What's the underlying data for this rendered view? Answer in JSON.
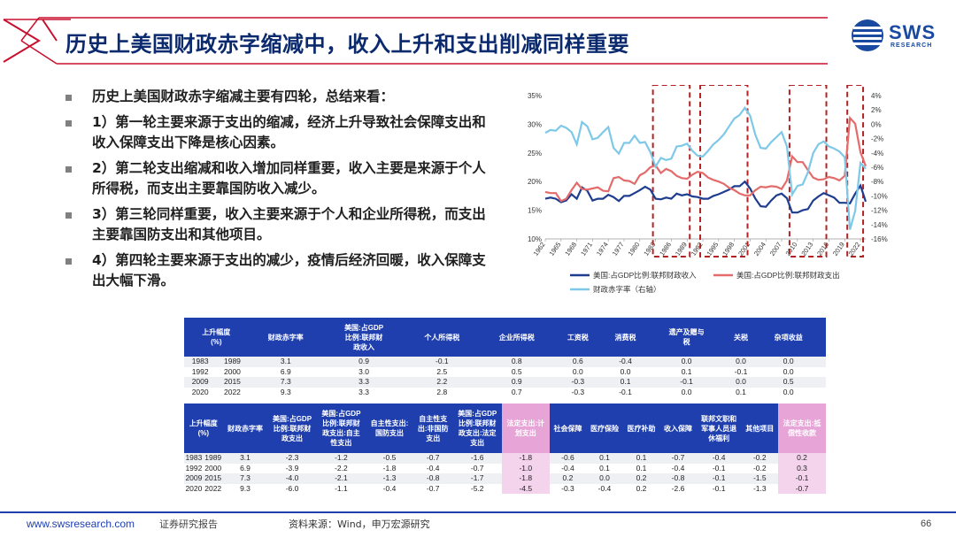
{
  "slide": {
    "title": "历史上美国财政赤字缩减中，收入上升和支出削减同样重要",
    "page_number": "66"
  },
  "logo": {
    "word": "SWS",
    "sub": "RESEARCH"
  },
  "bullets": [
    "历史上美国财政赤字缩减主要有四轮，总结来看：",
    "1）第一轮主要来源于支出的缩减，经济上升导致社会保障支出和收入保障支出下降是核心因素。",
    "2）第二轮支出缩减和收入增加同样重要，收入主要是来源于个人所得税，而支出主要靠国防收入减少。",
    "3）第三轮同样重要，收入主要来源于个人和企业所得税，而支出主要靠国防支出和其他项目。",
    "4）第四轮主要来源于支出的减少，疫情后经济回暖，收入保障支出大幅下滑。"
  ],
  "chart_data": {
    "type": "line",
    "x_ticks": [
      "1962",
      "1965",
      "1968",
      "1971",
      "1974",
      "1977",
      "1980",
      "1983",
      "1986",
      "1989",
      "1992",
      "1995",
      "1998",
      "2001",
      "2004",
      "2007",
      "2010",
      "2013",
      "2016",
      "2019",
      "2022"
    ],
    "y_left": {
      "min": 10,
      "max": 35,
      "step": 5,
      "unit": "%"
    },
    "y_right": {
      "min": -16,
      "max": 4,
      "step": 2,
      "unit": "%"
    },
    "highlight_periods": [
      [
        "1983",
        "1989"
      ],
      [
        "1992",
        "2000"
      ],
      [
        "2009",
        "2015"
      ],
      [
        "2020",
        "2022"
      ]
    ],
    "series": [
      {
        "name": "美国:占GDP比例:联邦财政收入",
        "color": "#1f3d8f",
        "axis": "left",
        "x": [
          1962,
          1963,
          1964,
          1965,
          1966,
          1967,
          1968,
          1969,
          1970,
          1971,
          1972,
          1973,
          1974,
          1975,
          1976,
          1977,
          1978,
          1979,
          1980,
          1981,
          1982,
          1983,
          1984,
          1985,
          1986,
          1987,
          1988,
          1989,
          1990,
          1991,
          1992,
          1993,
          1994,
          1995,
          1996,
          1997,
          1998,
          1999,
          2000,
          2001,
          2002,
          2003,
          2004,
          2005,
          2006,
          2007,
          2008,
          2009,
          2010,
          2011,
          2012,
          2013,
          2014,
          2015,
          2016,
          2017,
          2018,
          2019,
          2020,
          2021,
          2022,
          2023
        ],
        "values": [
          17.0,
          17.2,
          17.0,
          16.4,
          16.7,
          17.8,
          17.0,
          19.0,
          18.4,
          16.7,
          17.0,
          17.0,
          17.7,
          17.3,
          16.6,
          17.5,
          17.5,
          18.0,
          18.5,
          19.1,
          18.6,
          17.0,
          16.9,
          17.2,
          17.0,
          17.9,
          17.6,
          17.8,
          17.4,
          17.3,
          17.0,
          17.0,
          17.5,
          17.8,
          18.2,
          18.6,
          19.2,
          19.2,
          20.0,
          18.8,
          17.0,
          15.7,
          15.6,
          16.7,
          17.6,
          17.9,
          17.1,
          14.6,
          14.6,
          15.0,
          15.2,
          16.7,
          17.4,
          18.0,
          17.6,
          17.2,
          16.3,
          16.3,
          16.2,
          17.9,
          19.3,
          16.5
        ]
      },
      {
        "name": "美国:占GDP比例:联邦财政支出",
        "color": "#e46b6b",
        "axis": "left",
        "x": [
          1962,
          1963,
          1964,
          1965,
          1966,
          1967,
          1968,
          1969,
          1970,
          1971,
          1972,
          1973,
          1974,
          1975,
          1976,
          1977,
          1978,
          1979,
          1980,
          1981,
          1982,
          1983,
          1984,
          1985,
          1986,
          1987,
          1988,
          1989,
          1990,
          1991,
          1992,
          1993,
          1994,
          1995,
          1996,
          1997,
          1998,
          1999,
          2000,
          2001,
          2002,
          2003,
          2004,
          2005,
          2006,
          2007,
          2008,
          2009,
          2010,
          2011,
          2012,
          2013,
          2014,
          2015,
          2016,
          2017,
          2018,
          2019,
          2020,
          2021,
          2022,
          2023
        ],
        "values": [
          18.2,
          18.0,
          18.0,
          16.6,
          17.0,
          18.5,
          19.8,
          18.7,
          18.6,
          18.8,
          19.0,
          18.4,
          18.3,
          20.6,
          20.8,
          20.2,
          20.1,
          19.6,
          21.1,
          21.6,
          22.5,
          22.8,
          21.5,
          22.2,
          21.8,
          21.0,
          20.6,
          20.5,
          21.2,
          21.7,
          21.5,
          20.7,
          20.3,
          20.0,
          19.6,
          18.9,
          18.5,
          17.9,
          17.6,
          17.6,
          18.5,
          19.1,
          19.0,
          19.2,
          19.1,
          18.7,
          20.2,
          24.4,
          23.4,
          23.4,
          22.0,
          20.7,
          20.3,
          20.4,
          20.8,
          20.6,
          20.2,
          21.0,
          31.1,
          30.1,
          25.1,
          22.7
        ]
      },
      {
        "name": "财政赤字率（右轴）",
        "color": "#7ec8e8",
        "axis": "right",
        "x": [
          1962,
          1963,
          1964,
          1965,
          1966,
          1967,
          1968,
          1969,
          1970,
          1971,
          1972,
          1973,
          1974,
          1975,
          1976,
          1977,
          1978,
          1979,
          1980,
          1981,
          1982,
          1983,
          1984,
          1985,
          1986,
          1987,
          1988,
          1989,
          1990,
          1991,
          1992,
          1993,
          1994,
          1995,
          1996,
          1997,
          1998,
          1999,
          2000,
          2001,
          2002,
          2003,
          2004,
          2005,
          2006,
          2007,
          2008,
          2009,
          2010,
          2011,
          2012,
          2013,
          2014,
          2015,
          2016,
          2017,
          2018,
          2019,
          2020,
          2021,
          2022,
          2023
        ],
        "values": [
          -1.2,
          -0.8,
          -0.9,
          -0.2,
          -0.5,
          -1.1,
          -2.8,
          0.3,
          -0.3,
          -2.1,
          -1.9,
          -1.1,
          -0.4,
          -3.3,
          -4.1,
          -2.6,
          -2.6,
          -1.6,
          -2.6,
          -2.5,
          -3.9,
          -5.9,
          -4.7,
          -5.0,
          -4.8,
          -3.1,
          -3.0,
          -2.7,
          -3.7,
          -4.4,
          -4.5,
          -3.7,
          -2.8,
          -2.2,
          -1.4,
          -0.3,
          0.8,
          1.3,
          2.3,
          1.2,
          -1.5,
          -3.3,
          -3.4,
          -2.5,
          -1.8,
          -1.1,
          -3.1,
          -9.8,
          -8.6,
          -8.4,
          -6.7,
          -4.0,
          -2.8,
          -2.4,
          -3.1,
          -3.4,
          -3.8,
          -4.6,
          -14.7,
          -12.1,
          -5.4,
          -6.2
        ]
      }
    ],
    "legend_position": "bottom"
  },
  "table1": {
    "headers": [
      {
        "label": "上升幅度\n(%)",
        "span": 2,
        "pink": false
      },
      {
        "label": "财政赤字率",
        "span": 1,
        "pink": false
      },
      {
        "label": "美国:占GDP\n比例:联邦财\n政收入",
        "span": 1,
        "pink": false
      },
      {
        "label": "个人所得税",
        "span": 1,
        "pink": false
      },
      {
        "label": "企业所得税",
        "span": 1,
        "pink": false
      },
      {
        "label": "工资税",
        "span": 1,
        "pink": false
      },
      {
        "label": "消费税",
        "span": 1,
        "pink": false
      },
      {
        "label": "遗产及赠与\n税",
        "span": 1,
        "pink": false
      },
      {
        "label": "关税",
        "span": 1,
        "pink": false
      },
      {
        "label": "杂项收益",
        "span": 1,
        "pink": false
      },
      {
        "label": "",
        "span": 1,
        "pink": false
      }
    ],
    "rows": [
      [
        "1983",
        "1989",
        "3.1",
        "0.9",
        "-0.1",
        "0.8",
        "0.6",
        "-0.4",
        "0.0",
        "0.0",
        "0.0",
        ""
      ],
      [
        "1992",
        "2000",
        "6.9",
        "3.0",
        "2.5",
        "0.5",
        "0.0",
        "0.0",
        "0.1",
        "-0.1",
        "0.0",
        ""
      ],
      [
        "2009",
        "2015",
        "7.3",
        "3.3",
        "2.2",
        "0.9",
        "-0.3",
        "0.1",
        "-0.1",
        "0.0",
        "0.5",
        ""
      ],
      [
        "2020",
        "2022",
        "9.3",
        "3.3",
        "2.8",
        "0.7",
        "-0.3",
        "-0.1",
        "0.0",
        "0.1",
        "0.0",
        ""
      ]
    ]
  },
  "table2": {
    "headers": [
      {
        "label": "上升幅度\n(%)",
        "span": 2,
        "pink": false
      },
      {
        "label": "财政赤字率",
        "span": 1,
        "pink": false
      },
      {
        "label": "美国:占GDP\n比例:联邦财\n政支出",
        "span": 1,
        "pink": false
      },
      {
        "label": "美国:占GDP\n比例:联邦财\n政支出:自主\n性支出",
        "span": 1,
        "pink": false
      },
      {
        "label": "自主性支出:\n国防支出",
        "span": 1,
        "pink": false
      },
      {
        "label": "自主性支\n出:非国防\n支出",
        "span": 1,
        "pink": false
      },
      {
        "label": "美国:占GDP\n比例:联邦财\n政支出:法定\n支出",
        "span": 1,
        "pink": false
      },
      {
        "label": "法定支出:计\n划支出",
        "span": 1,
        "pink": true
      },
      {
        "label": "社会保障",
        "span": 1,
        "pink": false
      },
      {
        "label": "医疗保险",
        "span": 1,
        "pink": false
      },
      {
        "label": "医疗补助",
        "span": 1,
        "pink": false
      },
      {
        "label": "收入保障",
        "span": 1,
        "pink": false
      },
      {
        "label": "联邦文职和\n军事人员退\n休福利",
        "span": 1,
        "pink": false
      },
      {
        "label": "其他项目",
        "span": 1,
        "pink": false
      },
      {
        "label": "法定支出:抵\n偿性收款",
        "span": 1,
        "pink": true
      }
    ],
    "rows": [
      [
        "1983",
        "1989",
        "3.1",
        "-2.3",
        "-1.2",
        "-0.5",
        "-0.7",
        "-1.6",
        "-1.8",
        "-0.6",
        "0.1",
        "0.1",
        "-0.7",
        "-0.4",
        "-0.2",
        "0.2"
      ],
      [
        "1992",
        "2000",
        "6.9",
        "-3.9",
        "-2.2",
        "-1.8",
        "-0.4",
        "-0.7",
        "-1.0",
        "-0.4",
        "0.1",
        "0.1",
        "-0.4",
        "-0.1",
        "-0.2",
        "0.3"
      ],
      [
        "2009",
        "2015",
        "7.3",
        "-4.0",
        "-2.1",
        "-1.3",
        "-0.8",
        "-1.7",
        "-1.8",
        "0.2",
        "0.0",
        "0.2",
        "-0.8",
        "-0.1",
        "-1.5",
        "-0.1"
      ],
      [
        "2020",
        "2022",
        "9.3",
        "-6.0",
        "-1.1",
        "-0.4",
        "-0.7",
        "-5.2",
        "-4.5",
        "-0.3",
        "-0.4",
        "0.2",
        "-2.6",
        "-0.1",
        "-1.3",
        "-0.7"
      ]
    ]
  },
  "footer": {
    "url": "www.swsresearch.com",
    "doc_type": "证券研究报告",
    "source": "资料来源：Wind，申万宏源研究"
  },
  "colors": {
    "title": "#0b2a6e",
    "accent_red": "#c8102e",
    "table_header": "#1f3fae",
    "pink_header": "#e7a4d6",
    "highlight_box": "#b22222"
  }
}
